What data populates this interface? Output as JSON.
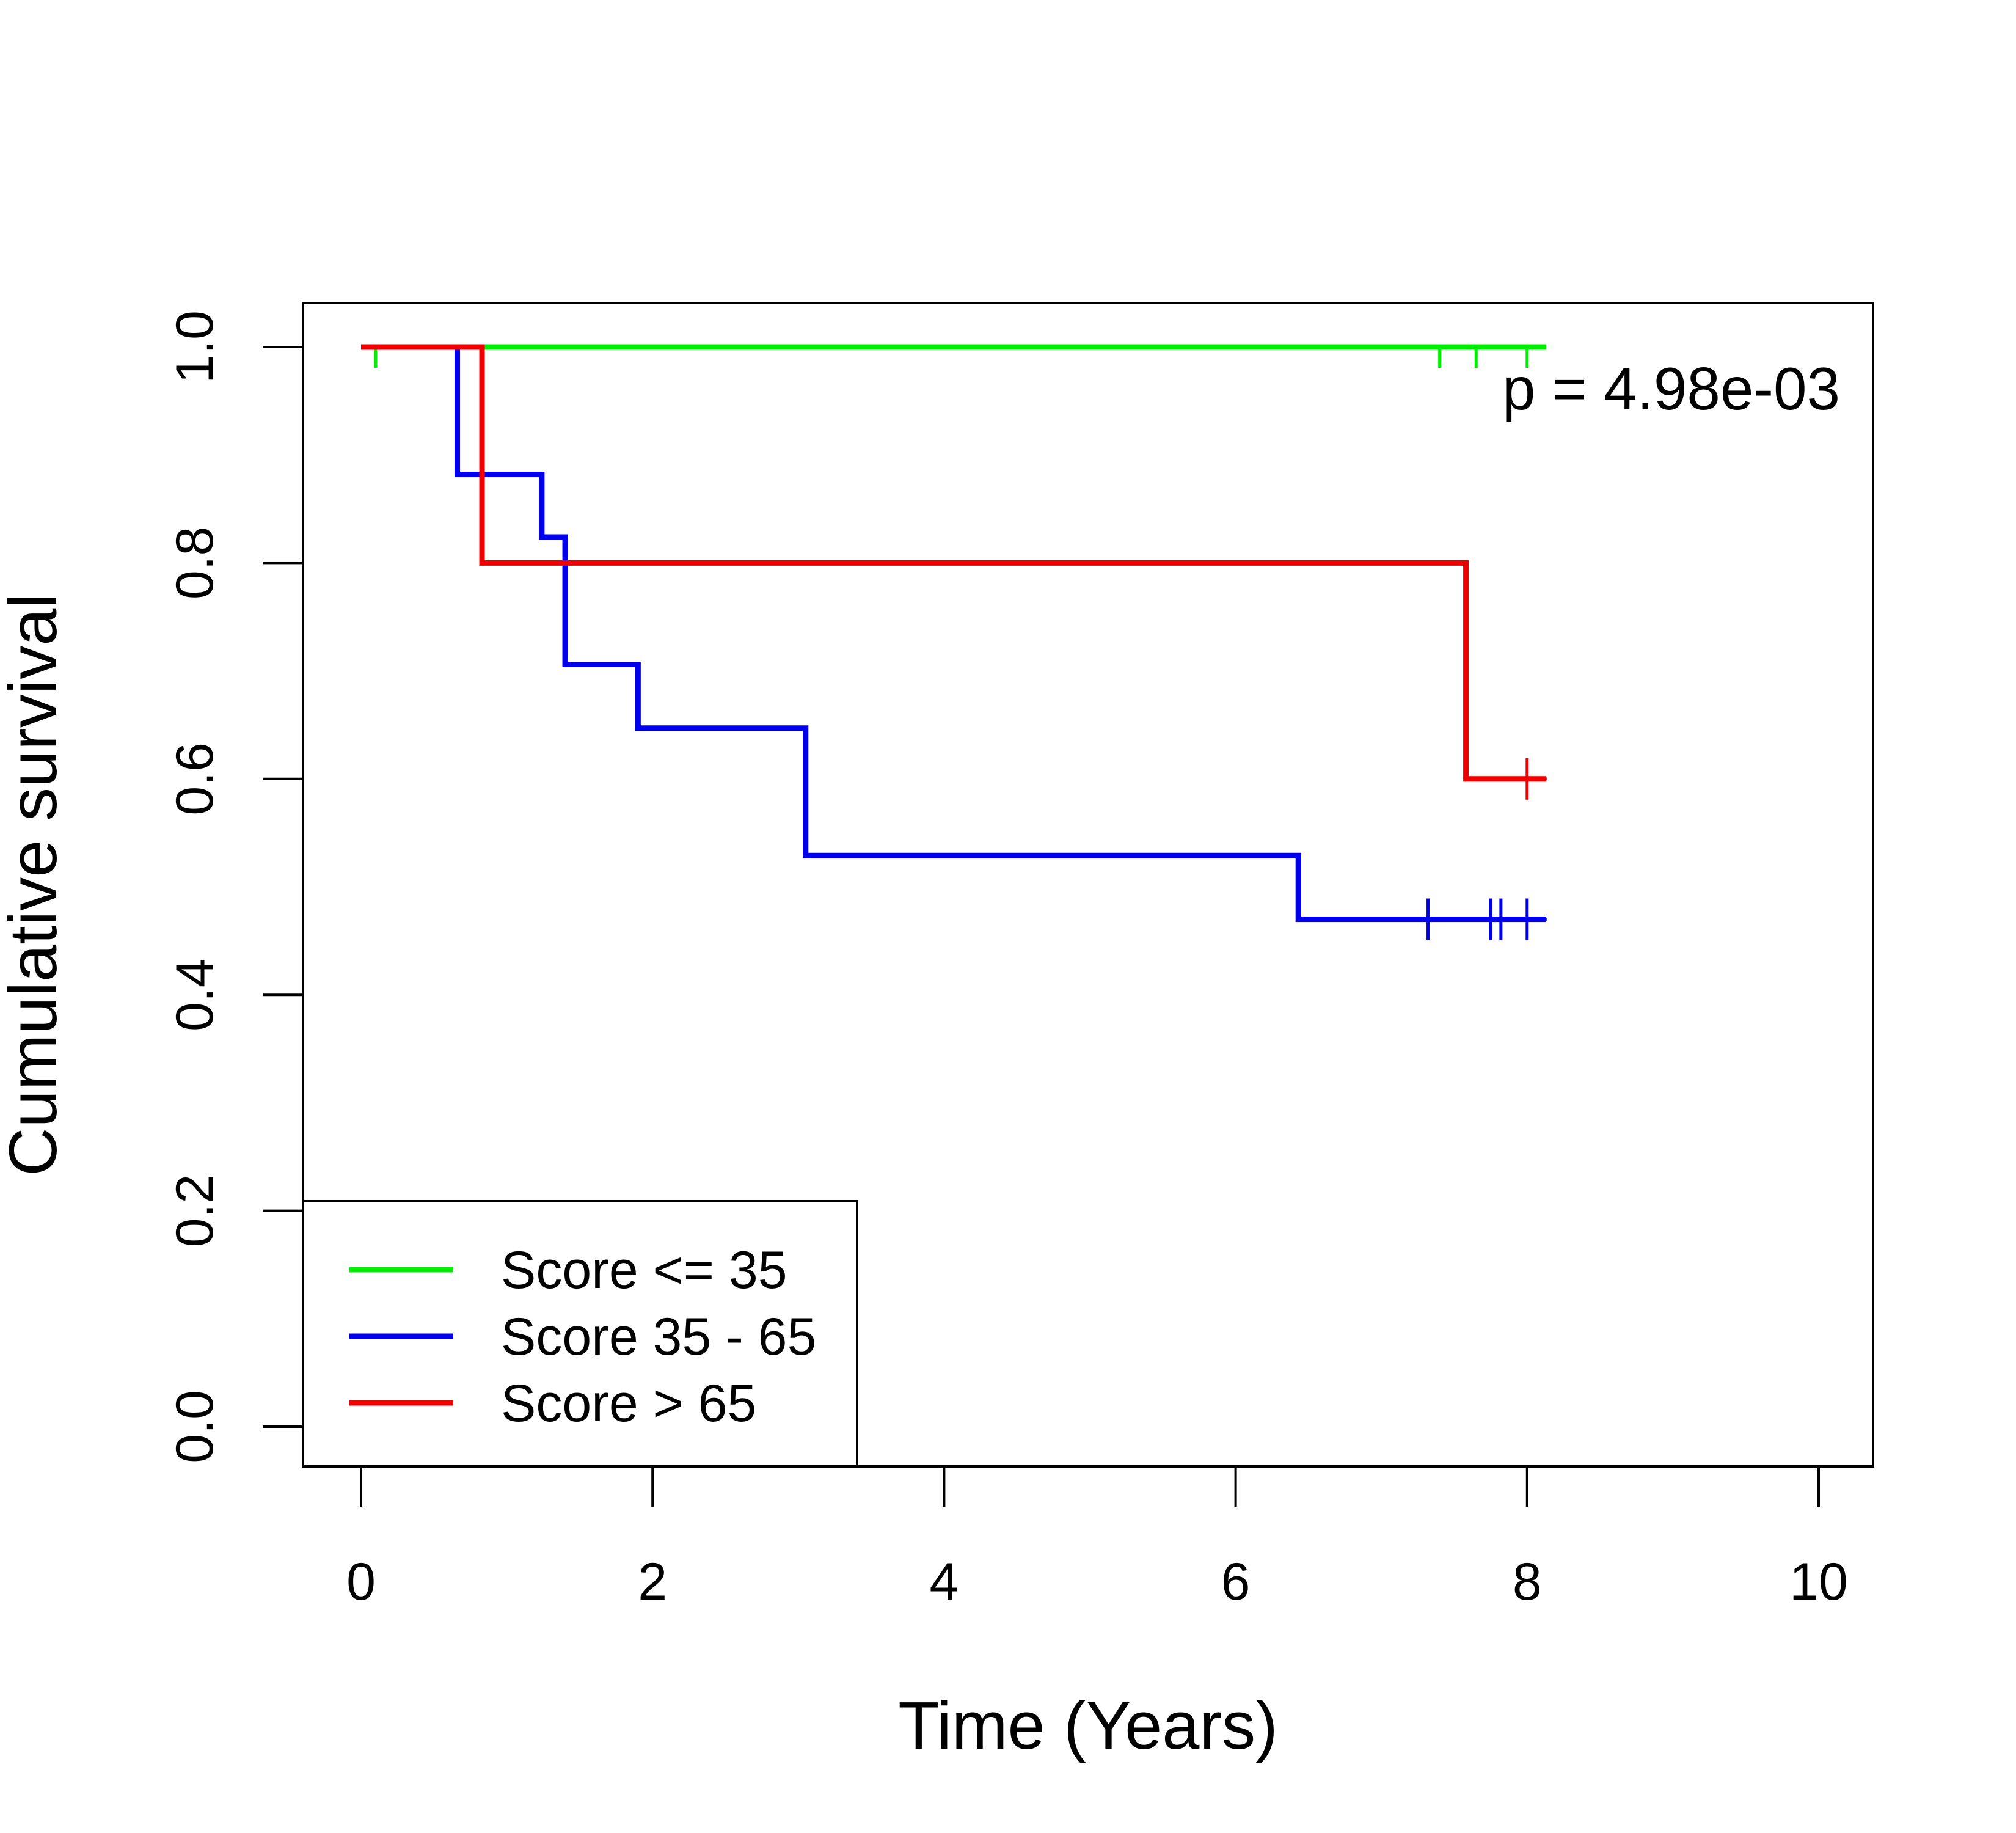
{
  "chart_data": {
    "type": "line",
    "subtype": "kaplan-meier-step",
    "xlabel": "Time (Years)",
    "ylabel": "Cumulative survival",
    "xlim": [
      0,
      10
    ],
    "ylim": [
      0,
      1
    ],
    "x_ticks": [
      "0",
      "2",
      "4",
      "6",
      "8",
      "10"
    ],
    "y_ticks": [
      "0.0",
      "0.2",
      "0.4",
      "0.6",
      "0.8",
      "1.0"
    ],
    "annotation": "p = 4.98e-03",
    "legend_position": "bottom-left",
    "grid": false,
    "series": [
      {
        "name": "Score <= 35",
        "color": "#00ee00",
        "steps": [
          [
            0,
            1.0
          ],
          [
            8.13,
            1.0
          ]
        ],
        "censored": [
          [
            0.1,
            1.0
          ],
          [
            7.4,
            1.0
          ],
          [
            7.65,
            1.0
          ],
          [
            8.0,
            1.0
          ]
        ]
      },
      {
        "name": "Score 35 - 65",
        "color": "#0000ee",
        "steps": [
          [
            0,
            1.0
          ],
          [
            0.66,
            0.882
          ],
          [
            1.24,
            0.824
          ],
          [
            1.4,
            0.706
          ],
          [
            1.9,
            0.647
          ],
          [
            3.05,
            0.529
          ],
          [
            6.43,
            0.47
          ],
          [
            8.13,
            0.47
          ]
        ],
        "censored": [
          [
            7.32,
            0.47
          ],
          [
            7.75,
            0.47
          ],
          [
            7.82,
            0.47
          ],
          [
            8.0,
            0.47
          ]
        ]
      },
      {
        "name": "Score > 65",
        "color": "#ee0000",
        "steps": [
          [
            0,
            1.0
          ],
          [
            0.83,
            0.8
          ],
          [
            7.58,
            0.6
          ],
          [
            8.13,
            0.6
          ]
        ],
        "censored": [
          [
            8.0,
            0.6
          ]
        ]
      }
    ]
  }
}
